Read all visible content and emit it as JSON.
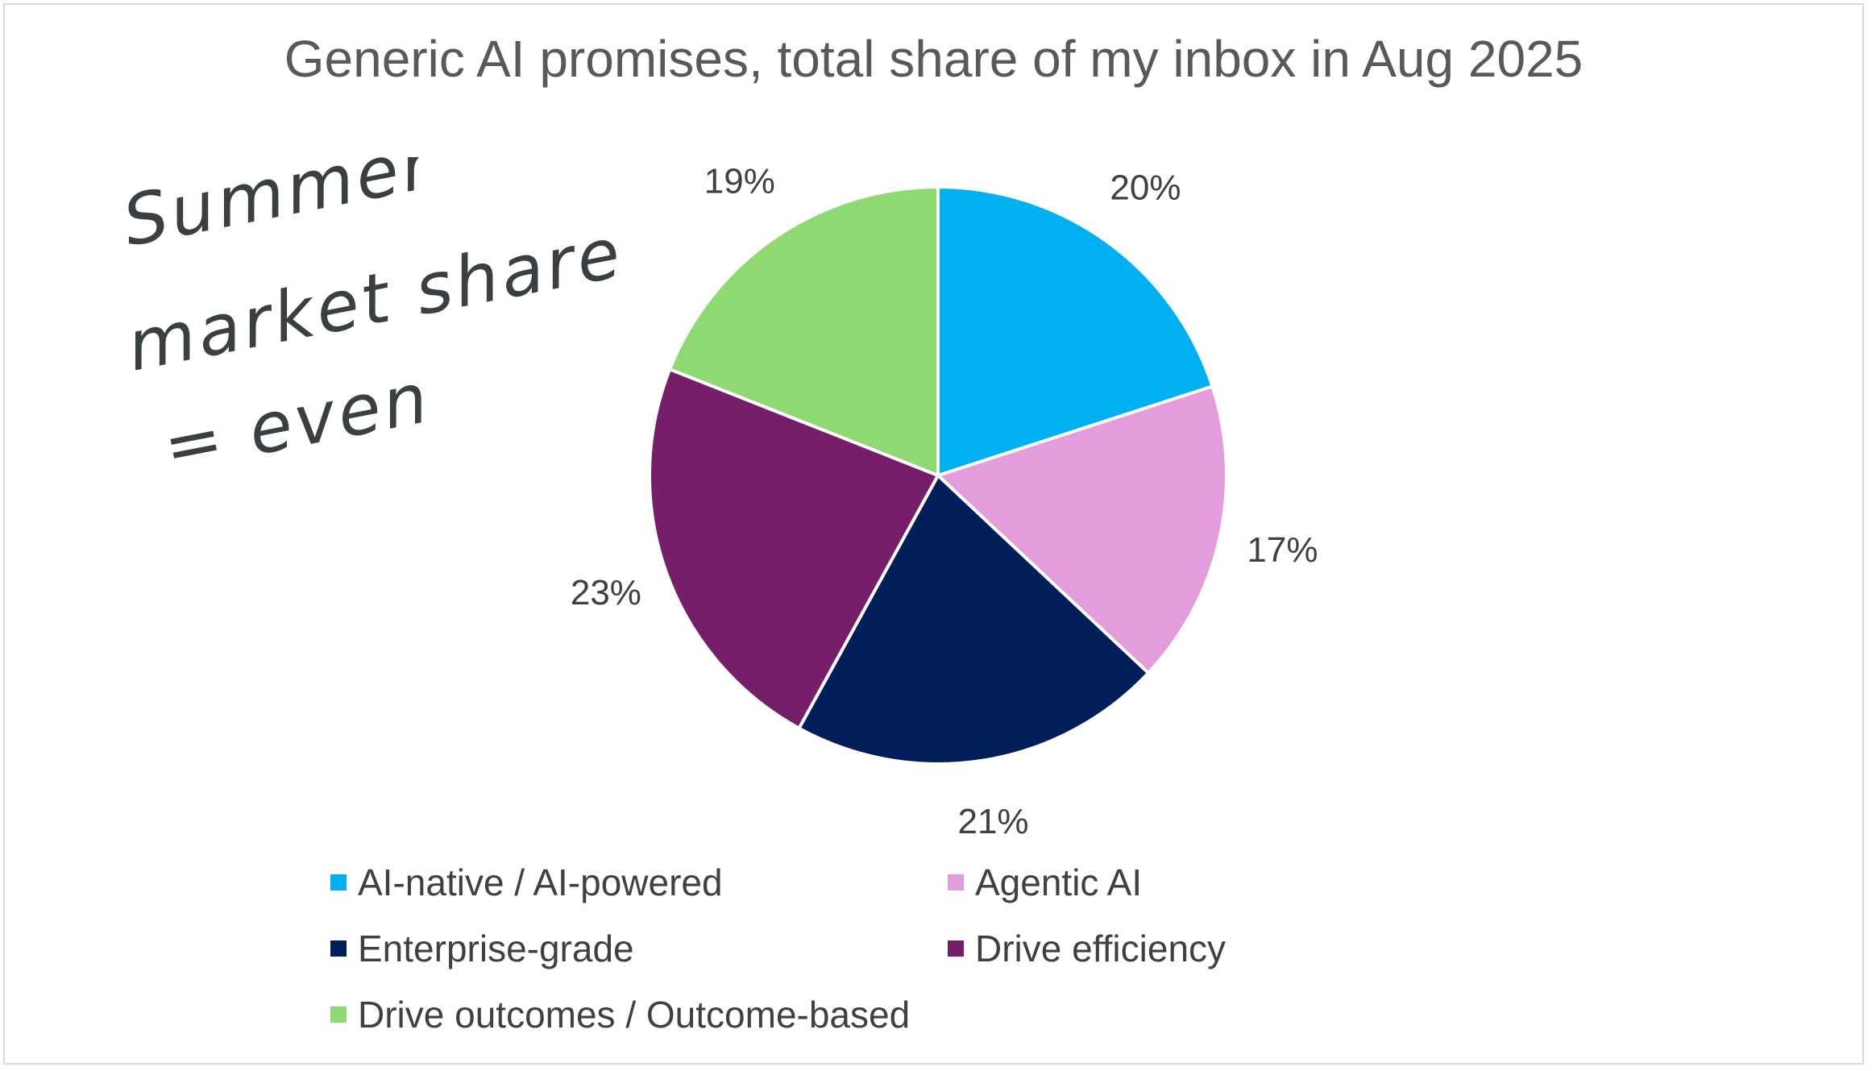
{
  "chart_data": {
    "type": "pie",
    "title": "Generic AI promises, total share of my inbox in Aug 2025",
    "categories": [
      "AI-native / AI-powered",
      "Agentic AI",
      "Enterprise-grade",
      "Drive efficiency",
      "Drive outcomes / Outcome-based"
    ],
    "values": [
      20,
      17,
      21,
      23,
      19
    ],
    "labels": [
      "20%",
      "17%",
      "21%",
      "23%",
      "19%"
    ],
    "colors": [
      "#00b0f0",
      "#e39ddd",
      "#001e5a",
      "#771e6b",
      "#8fd973"
    ],
    "legend_position": "bottom"
  },
  "annotation": {
    "lines": [
      "Summer",
      "market share",
      "= even"
    ]
  }
}
